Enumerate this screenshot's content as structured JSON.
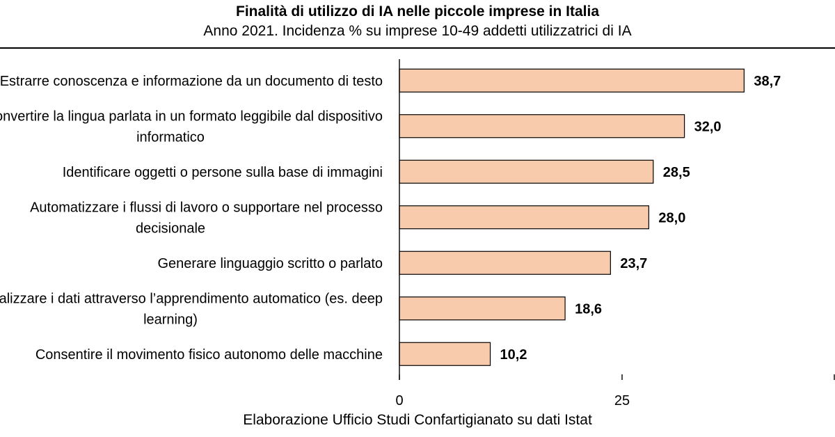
{
  "header": {
    "title": "Finalità di utilizzo di IA nelle piccole imprese in Italia",
    "subtitle": "Anno 2021. Incidenza % su imprese 10-49 addetti utilizzatrici di IA"
  },
  "footer": {
    "source": "Elaborazione Ufficio Studi Confartigianato su dati Istat"
  },
  "chart_data": {
    "type": "bar",
    "orientation": "horizontal",
    "title": "Finalità di utilizzo di IA nelle piccole imprese in Italia",
    "subtitle": "Anno 2021. Incidenza % su imprese 10-49 addetti utilizzatrici di IA",
    "xlabel": "",
    "ylabel": "",
    "categories": [
      [
        "Estrarre conoscenza e informazione da un documento di testo"
      ],
      [
        "Convertire la lingua parlata in un formato leggibile dal dispositivo",
        "informatico"
      ],
      [
        "Identificare oggetti o persone sulla base di immagini"
      ],
      [
        "Automatizzare i flussi di lavoro o supportare nel processo",
        "decisionale"
      ],
      [
        "Generare linguaggio scritto o parlato"
      ],
      [
        "Analizzare i dati attraverso l’apprendimento automatico (es. deep",
        "learning)"
      ],
      [
        "Consentire il movimento fisico autonomo delle macchine"
      ]
    ],
    "values": [
      38.7,
      32.0,
      28.5,
      28.0,
      23.7,
      18.6,
      10.2
    ],
    "value_labels": [
      "38,7",
      "32,0",
      "28,5",
      "28,0",
      "23,7",
      "18,6",
      "10,2"
    ],
    "xlim": [
      0,
      50
    ],
    "ticks": [
      0,
      25
    ],
    "tick_labels": [
      "0",
      "25"
    ],
    "grid": false,
    "legend": "none",
    "colors": {
      "bar_fill": "#f8cbad",
      "bar_stroke": "#000000",
      "axis": "#000000",
      "text": "#000000"
    }
  }
}
